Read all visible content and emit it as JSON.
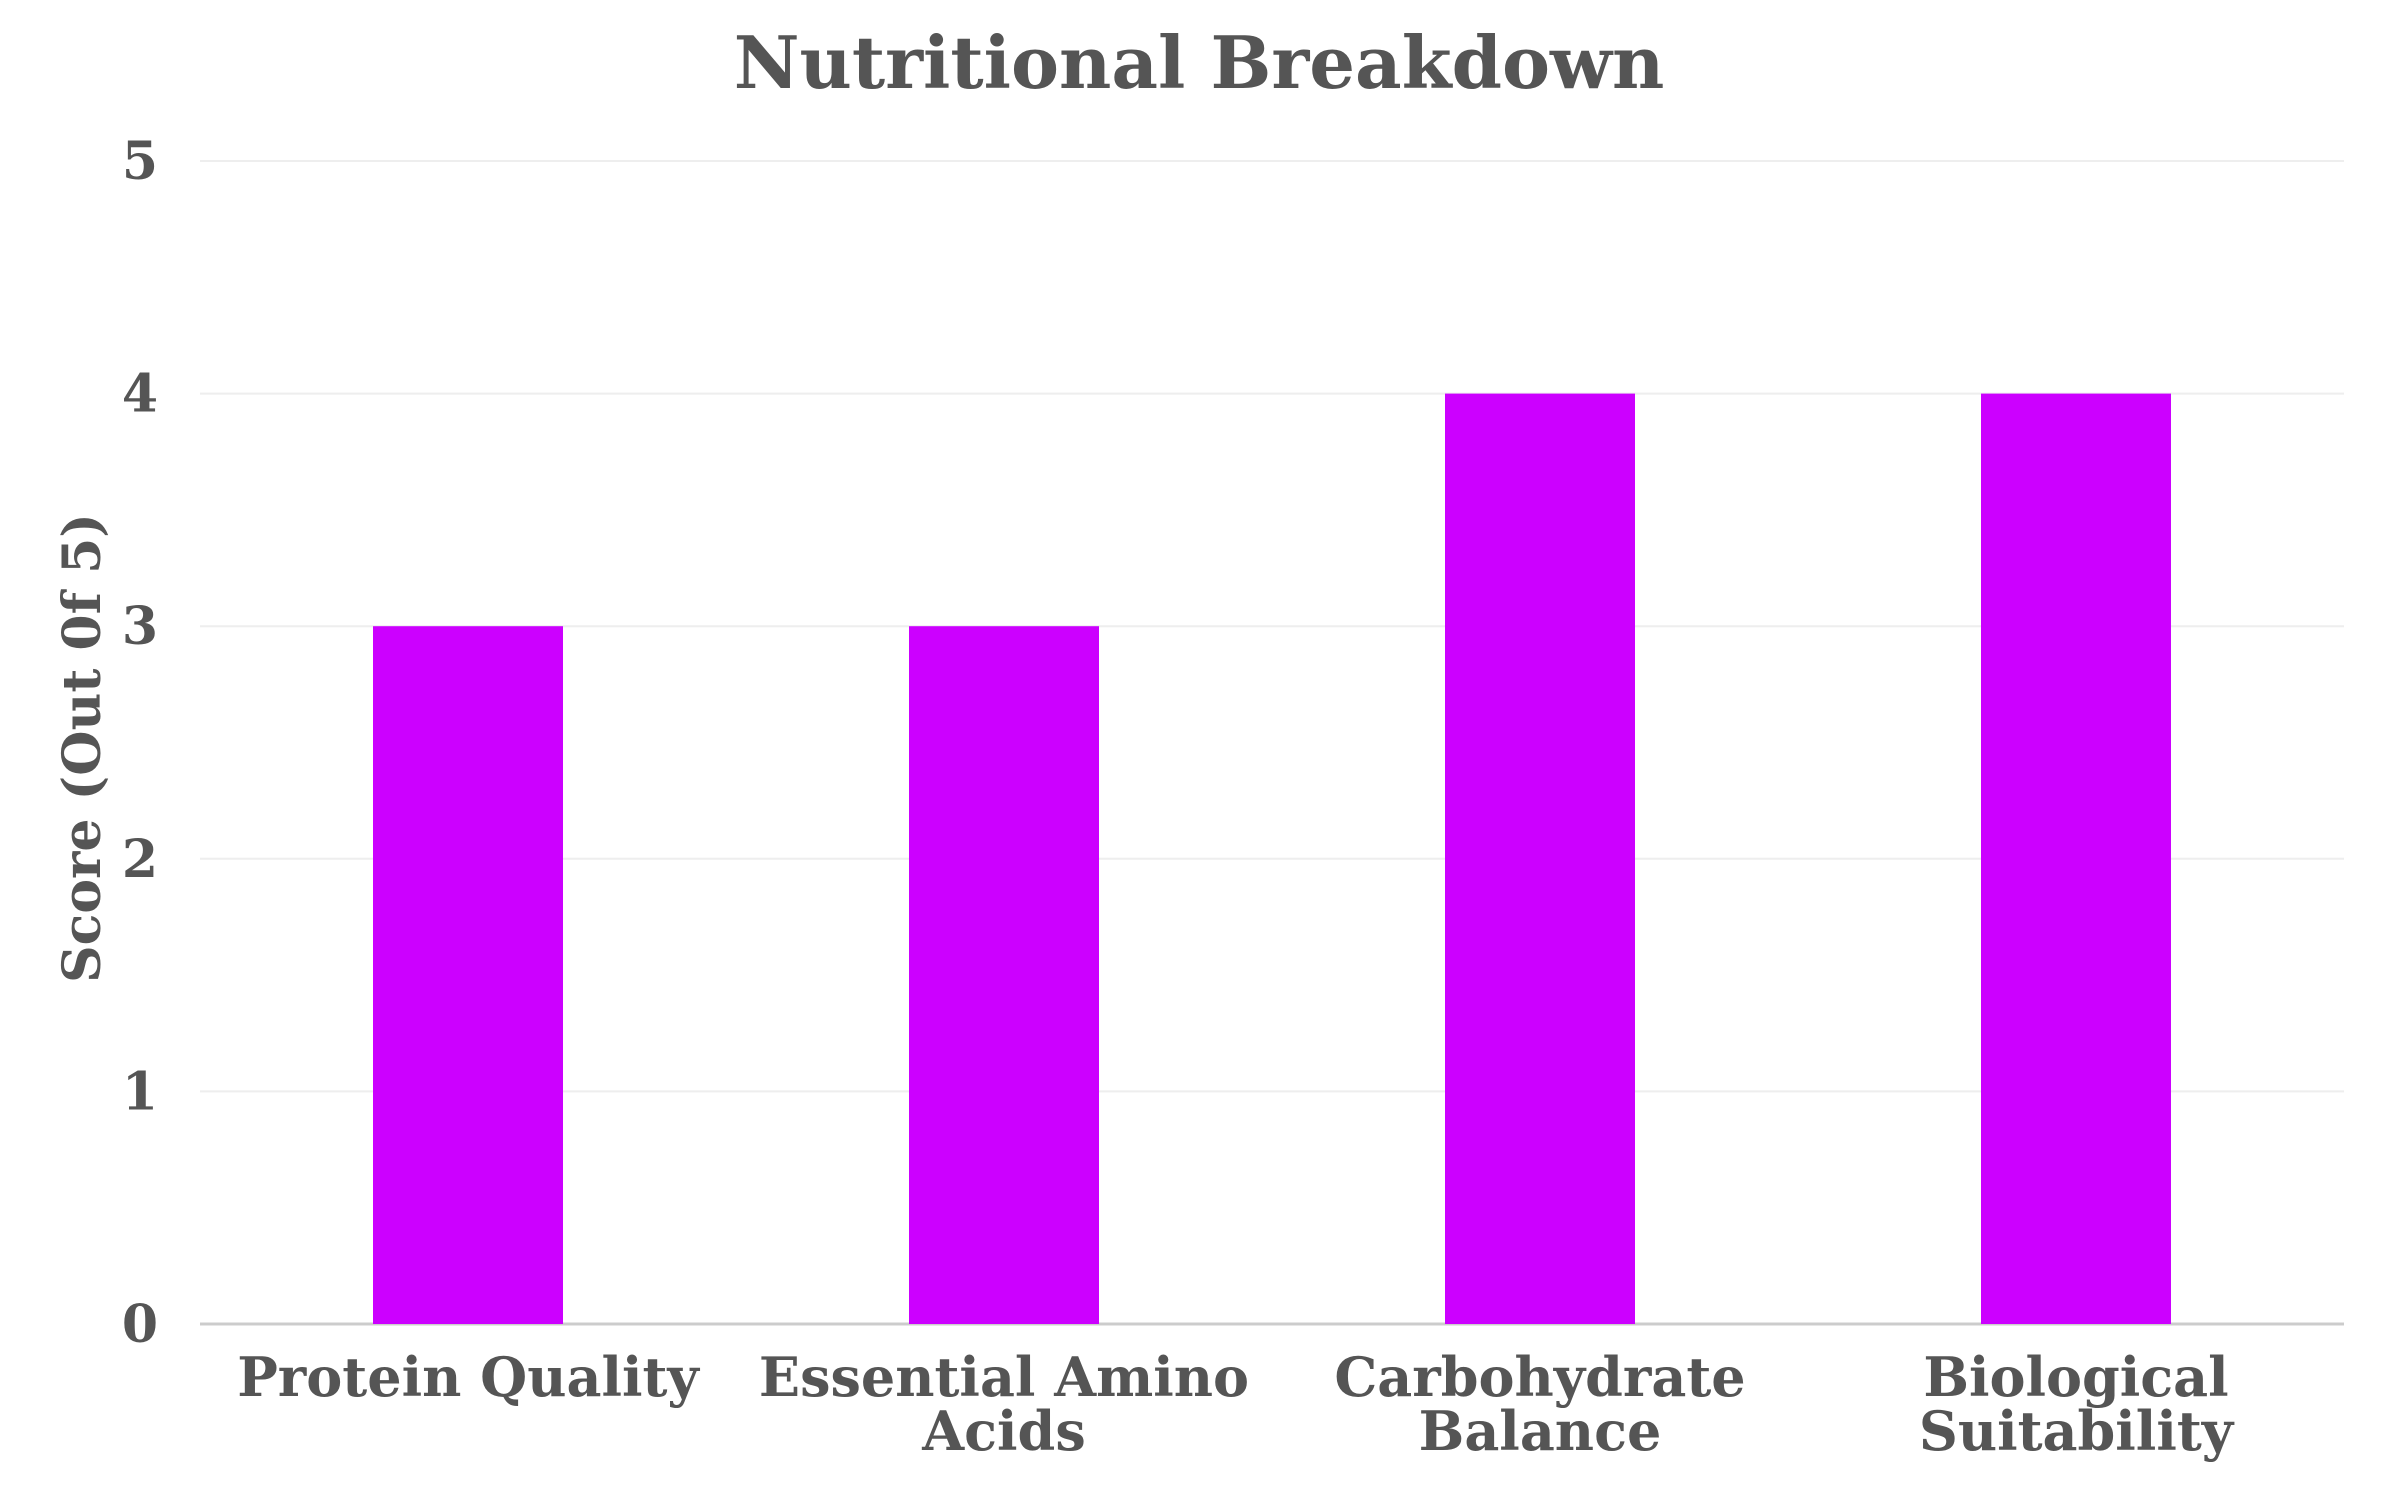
{
  "chart_data": {
    "type": "bar",
    "title": "Nutritional Breakdown",
    "xlabel": "",
    "ylabel": "Score (Out 0f 5)",
    "categories": [
      [
        "Protein Quality"
      ],
      [
        "Essential Amino",
        "Acids"
      ],
      [
        "Carbohydrate",
        "Balance"
      ],
      [
        "Biological",
        "Suitability"
      ]
    ],
    "values": [
      3,
      3,
      4,
      4
    ],
    "ylim": [
      0,
      5
    ],
    "yticks": [
      "0",
      "1",
      "2",
      "3",
      "4",
      "5"
    ],
    "grid": true,
    "legend": "none",
    "colors": {
      "bar": "#cc00ff",
      "text": "#555555",
      "grid": "#eeeeee",
      "axis": "#cccccc"
    }
  }
}
